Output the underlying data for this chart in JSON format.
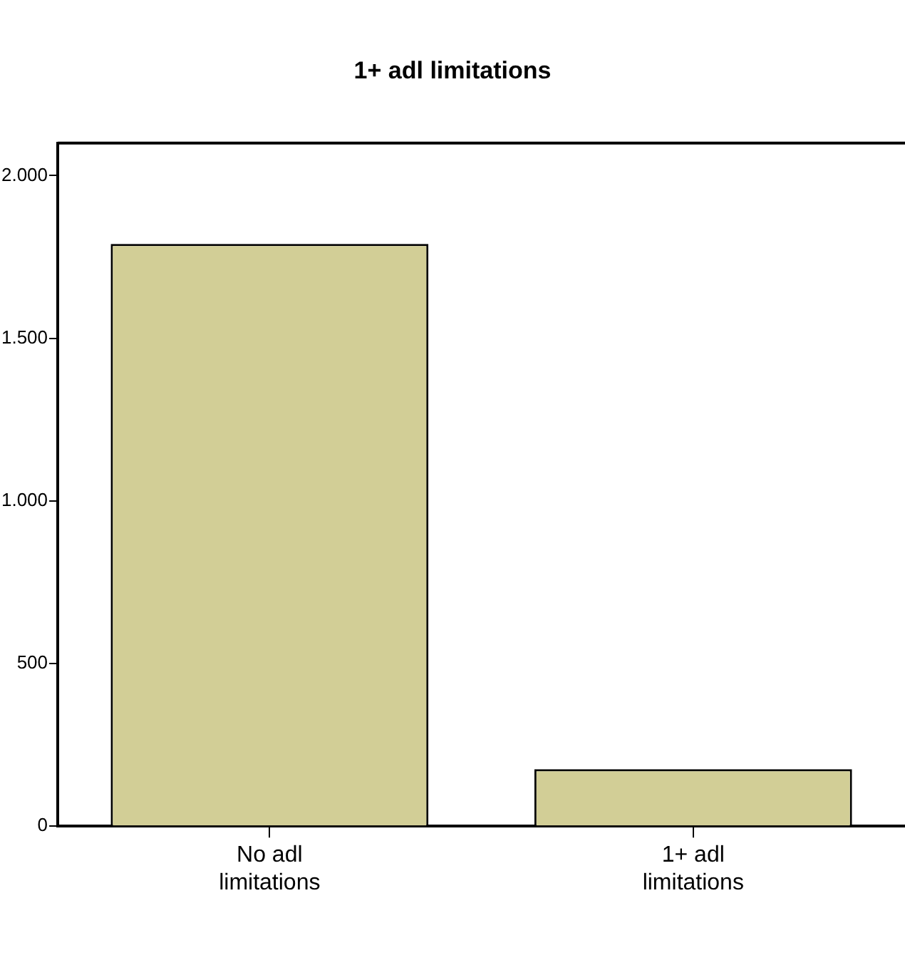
{
  "chart_data": {
    "type": "bar",
    "title": "1+ adl limitations",
    "categories": [
      "No adl limitations",
      "1+ adl limitations"
    ],
    "values": [
      1790,
      175
    ],
    "color": "#d2ce96",
    "ylim": [
      0,
      2100
    ],
    "yticks": [
      {
        "value": 0,
        "label": "0"
      },
      {
        "value": 500,
        "label": "500"
      },
      {
        "value": 1000,
        "label": "1.000"
      },
      {
        "value": 1500,
        "label": "1.500"
      },
      {
        "value": 2000,
        "label": "2.000"
      }
    ],
    "grid": false,
    "legend": false
  }
}
